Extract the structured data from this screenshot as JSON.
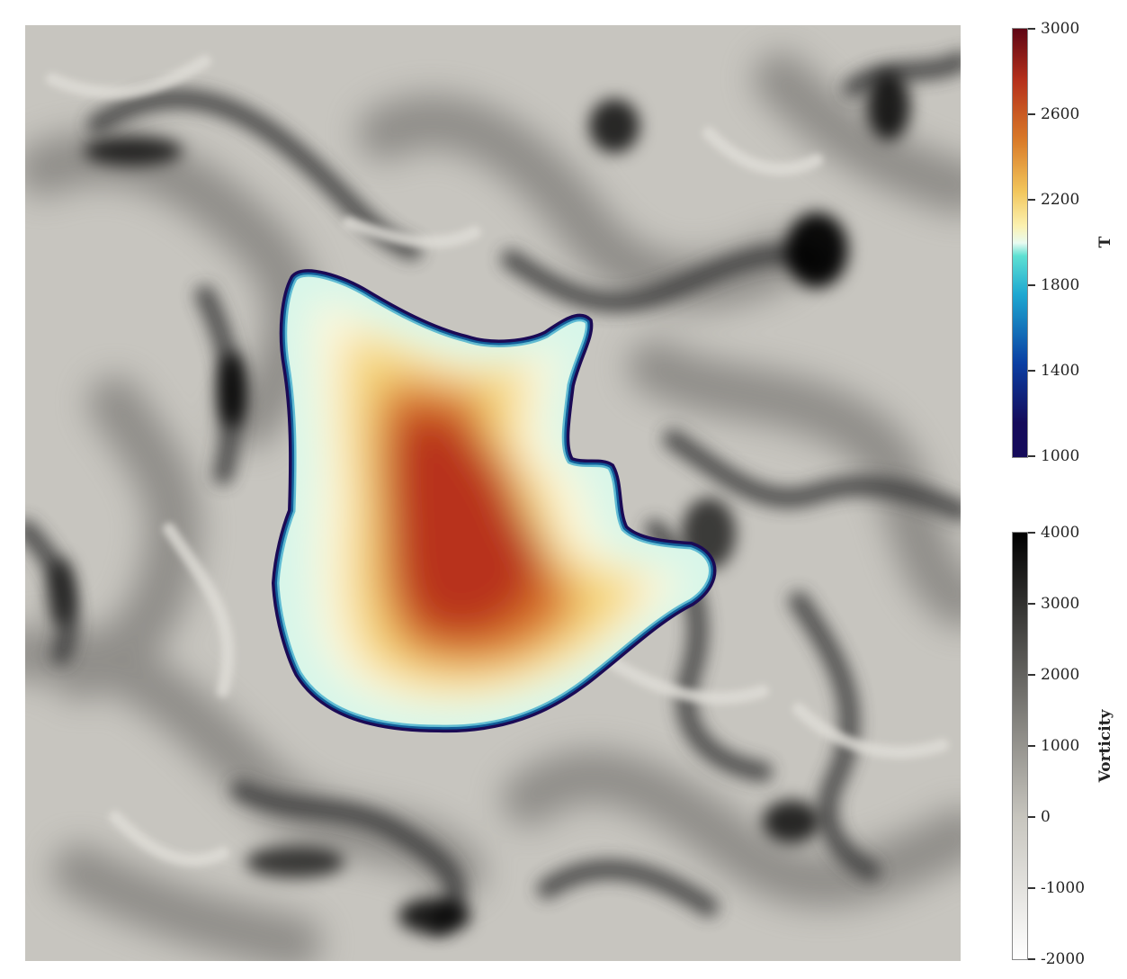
{
  "colorbars": {
    "temperature": {
      "title": "T",
      "ticks": [
        "3000",
        "2600",
        "2200",
        "1800",
        "1400",
        "1000"
      ],
      "range": [
        1000,
        3000
      ],
      "colors": [
        "#ffffff",
        "#150b5a",
        "#0a3fa3",
        "#1ea8d1",
        "#5ee0d2",
        "#e9fbf1",
        "#fbf1b0",
        "#f2c65c",
        "#d97a28",
        "#b5301b",
        "#5e0514"
      ]
    },
    "vorticity": {
      "title": "Vorticity",
      "ticks": [
        "4000",
        "3000",
        "2000",
        "1000",
        "0",
        "-1000",
        "-2000"
      ],
      "range": [
        -2000,
        4000
      ],
      "colors": [
        "#ffffff",
        "#c8c6bf",
        "#000000"
      ]
    }
  }
}
